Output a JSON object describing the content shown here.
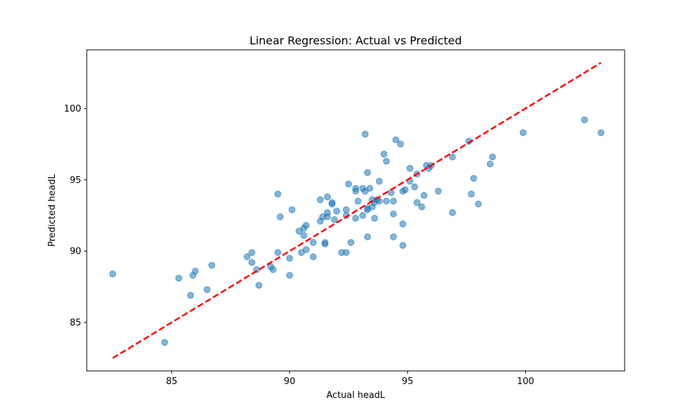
{
  "chart_data": {
    "type": "scatter",
    "title": "Linear Regression: Actual vs Predicted",
    "xlabel": "Actual headL",
    "ylabel": "Predicted headL",
    "xlim": [
      81.4,
      104.2
    ],
    "ylim": [
      81.6,
      104.1
    ],
    "xticks": [
      85,
      90,
      95,
      100
    ],
    "yticks": [
      85,
      90,
      95,
      100
    ],
    "grid": false,
    "point_color": "#1f77b4",
    "point_alpha": 0.55,
    "line_color": "#ff0000",
    "series": [
      {
        "kind": "scatter",
        "x": [
          82.5,
          84.7,
          85.3,
          85.8,
          85.9,
          86.0,
          86.5,
          86.7,
          88.2,
          88.4,
          88.4,
          88.6,
          88.7,
          89.2,
          89.3,
          89.5,
          89.5,
          89.6,
          90.0,
          90.0,
          90.1,
          90.4,
          90.5,
          90.6,
          90.6,
          90.7,
          90.7,
          91.0,
          91.0,
          91.3,
          91.3,
          91.4,
          91.5,
          91.5,
          91.6,
          91.6,
          91.6,
          91.8,
          91.8,
          91.9,
          92.0,
          92.2,
          92.4,
          92.4,
          92.4,
          92.5,
          92.6,
          92.8,
          92.8,
          92.8,
          92.9,
          93.1,
          93.1,
          93.2,
          93.2,
          93.3,
          93.3,
          93.3,
          93.3,
          93.4,
          93.5,
          93.5,
          93.6,
          93.6,
          93.7,
          93.8,
          93.8,
          94.0,
          94.1,
          94.1,
          94.3,
          94.4,
          94.4,
          94.4,
          94.5,
          94.7,
          94.8,
          94.8,
          94.8,
          94.9,
          95.1,
          95.1,
          95.3,
          95.4,
          95.4,
          95.6,
          95.7,
          95.8,
          95.9,
          96.0,
          96.3,
          96.9,
          96.9,
          97.6,
          97.7,
          97.8,
          98.0,
          98.5,
          98.6,
          99.9,
          102.5,
          103.2
        ],
        "y": [
          88.4,
          83.6,
          88.1,
          86.9,
          88.3,
          88.6,
          87.3,
          89.0,
          89.6,
          89.2,
          89.9,
          88.7,
          87.6,
          88.9,
          88.7,
          89.9,
          94.0,
          92.4,
          88.3,
          89.5,
          92.9,
          91.4,
          89.9,
          91.1,
          91.6,
          91.8,
          90.1,
          90.6,
          89.6,
          92.1,
          93.6,
          92.4,
          90.5,
          90.6,
          92.4,
          92.7,
          93.8,
          93.3,
          93.4,
          92.2,
          92.8,
          89.9,
          89.9,
          92.9,
          92.5,
          94.7,
          90.6,
          94.2,
          94.4,
          92.3,
          93.5,
          92.5,
          94.4,
          94.2,
          98.2,
          95.5,
          93.0,
          91.0,
          92.9,
          94.4,
          93.1,
          93.6,
          93.4,
          92.3,
          93.6,
          93.5,
          94.9,
          96.8,
          96.3,
          93.5,
          94.1,
          92.6,
          91.0,
          93.5,
          97.8,
          97.5,
          91.9,
          90.4,
          94.2,
          94.3,
          95.8,
          94.9,
          94.5,
          93.4,
          95.4,
          93.1,
          93.9,
          96.0,
          95.8,
          96.0,
          94.2,
          96.6,
          92.7,
          97.7,
          94.0,
          95.1,
          93.3,
          96.1,
          96.6,
          98.3,
          99.2,
          98.3
        ]
      },
      {
        "kind": "line",
        "style": "dashed",
        "x": [
          82.5,
          103.2
        ],
        "y": [
          82.5,
          103.2
        ]
      }
    ]
  }
}
